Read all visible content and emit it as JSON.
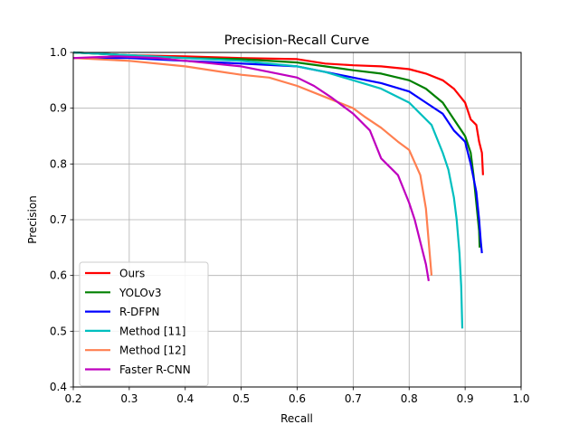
{
  "chart_data": {
    "type": "line",
    "title": "Precision-Recall Curve",
    "xlabel": "Recall",
    "ylabel": "Precision",
    "xlim": [
      0.2,
      1.0
    ],
    "ylim": [
      0.4,
      1.0
    ],
    "xticks": [
      "0.2",
      "0.3",
      "0.4",
      "0.5",
      "0.6",
      "0.7",
      "0.8",
      "0.9",
      "1.0"
    ],
    "yticks": [
      "0.4",
      "0.5",
      "0.6",
      "0.7",
      "0.8",
      "0.9",
      "1.0"
    ],
    "grid": true,
    "legend_position": "lower-left",
    "series": [
      {
        "name": "Ours",
        "color": "#ff0000",
        "x": [
          0.2,
          0.3,
          0.4,
          0.5,
          0.6,
          0.65,
          0.7,
          0.75,
          0.8,
          0.83,
          0.86,
          0.88,
          0.9,
          0.91,
          0.92,
          0.925,
          0.93,
          0.932
        ],
        "y": [
          1.0,
          0.995,
          0.993,
          0.99,
          0.988,
          0.98,
          0.977,
          0.975,
          0.97,
          0.962,
          0.95,
          0.935,
          0.91,
          0.88,
          0.87,
          0.84,
          0.82,
          0.78
        ]
      },
      {
        "name": "YOLOv3",
        "color": "#008000",
        "x": [
          0.2,
          0.3,
          0.4,
          0.5,
          0.6,
          0.65,
          0.7,
          0.75,
          0.8,
          0.83,
          0.86,
          0.88,
          0.9,
          0.91,
          0.915,
          0.92,
          0.925,
          0.926
        ],
        "y": [
          1.0,
          0.995,
          0.99,
          0.988,
          0.982,
          0.975,
          0.968,
          0.962,
          0.95,
          0.935,
          0.91,
          0.88,
          0.85,
          0.82,
          0.78,
          0.73,
          0.68,
          0.65
        ]
      },
      {
        "name": "R-DFPN",
        "color": "#0000ff",
        "x": [
          0.2,
          0.3,
          0.4,
          0.5,
          0.6,
          0.65,
          0.7,
          0.75,
          0.8,
          0.83,
          0.86,
          0.88,
          0.9,
          0.91,
          0.92,
          0.925,
          0.928,
          0.93
        ],
        "y": [
          0.99,
          0.99,
          0.985,
          0.98,
          0.975,
          0.965,
          0.955,
          0.945,
          0.93,
          0.91,
          0.89,
          0.86,
          0.84,
          0.8,
          0.75,
          0.7,
          0.66,
          0.64
        ]
      },
      {
        "name": "Method [11]",
        "color": "#00bfbf",
        "x": [
          0.2,
          0.3,
          0.4,
          0.5,
          0.6,
          0.65,
          0.7,
          0.75,
          0.8,
          0.82,
          0.84,
          0.86,
          0.87,
          0.88,
          0.885,
          0.89,
          0.893,
          0.895
        ],
        "y": [
          1.0,
          0.995,
          0.99,
          0.985,
          0.975,
          0.965,
          0.95,
          0.935,
          0.91,
          0.89,
          0.87,
          0.82,
          0.79,
          0.74,
          0.7,
          0.64,
          0.58,
          0.505
        ]
      },
      {
        "name": "Method [12]",
        "color": "#ff7f50",
        "x": [
          0.2,
          0.3,
          0.4,
          0.5,
          0.55,
          0.6,
          0.65,
          0.7,
          0.72,
          0.75,
          0.78,
          0.8,
          0.82,
          0.83,
          0.835,
          0.84
        ],
        "y": [
          0.99,
          0.985,
          0.975,
          0.96,
          0.955,
          0.94,
          0.92,
          0.9,
          0.885,
          0.865,
          0.84,
          0.825,
          0.78,
          0.72,
          0.66,
          0.6
        ]
      },
      {
        "name": "Faster R-CNN",
        "color": "#bf00bf",
        "x": [
          0.2,
          0.28,
          0.35,
          0.45,
          0.5,
          0.55,
          0.6,
          0.63,
          0.66,
          0.7,
          0.73,
          0.75,
          0.78,
          0.8,
          0.81,
          0.82,
          0.83,
          0.835
        ],
        "y": [
          0.99,
          0.993,
          0.99,
          0.98,
          0.975,
          0.965,
          0.955,
          0.94,
          0.92,
          0.89,
          0.86,
          0.81,
          0.78,
          0.73,
          0.7,
          0.66,
          0.62,
          0.59
        ]
      }
    ]
  }
}
